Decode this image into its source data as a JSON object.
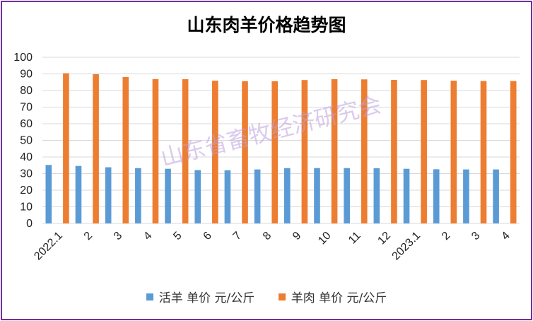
{
  "watermark": "山东省畜牧经济研究会",
  "colors": {
    "series_1": "#5b9bd5",
    "series_2": "#ed7d31",
    "border": "#7030a0",
    "grid": "#d9d9d9"
  },
  "chart_data": {
    "type": "bar",
    "title": "山东肉羊价格趋势图",
    "xlabel": "",
    "ylabel": "",
    "ylim": [
      0,
      100
    ],
    "yticks": [
      0,
      10,
      20,
      30,
      40,
      50,
      60,
      70,
      80,
      90,
      100
    ],
    "grid": true,
    "legend_position": "bottom",
    "categories": [
      "2022.1",
      "2",
      "3",
      "4",
      "5",
      "6",
      "7",
      "8",
      "9",
      "10",
      "11",
      "12",
      "2023.1",
      "2",
      "3",
      "4"
    ],
    "series": [
      {
        "name": "活羊 单价 元/公斤",
        "values": [
          35.2,
          34.6,
          33.8,
          33.3,
          32.9,
          32.1,
          32.0,
          32.5,
          33.3,
          33.3,
          33.3,
          33.2,
          32.9,
          32.6,
          32.5,
          32.5
        ]
      },
      {
        "name": "羊肉 单价 元/公斤",
        "values": [
          90.4,
          89.8,
          88.1,
          86.9,
          86.8,
          85.9,
          85.6,
          85.6,
          86.3,
          86.8,
          86.7,
          86.4,
          86.3,
          85.9,
          85.7,
          85.7
        ]
      }
    ]
  }
}
